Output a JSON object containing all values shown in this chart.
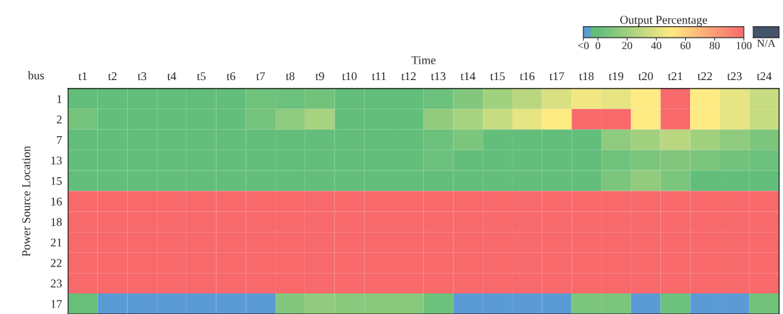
{
  "chart_data": {
    "type": "heatmap",
    "xlabel": "Time",
    "ylabel": "Power Source Location",
    "clabel": "Output Percentage",
    "categories": [
      "t1",
      "t2",
      "t3",
      "t4",
      "t5",
      "t6",
      "t7",
      "t8",
      "t9",
      "t10",
      "t11",
      "t12",
      "t13",
      "t14",
      "t15",
      "t16",
      "t17",
      "t18",
      "t19",
      "t20",
      "t21",
      "t22",
      "t23",
      "t24"
    ],
    "y_categories": [
      "1",
      "2",
      "7",
      "13",
      "15",
      "16",
      "18",
      "21",
      "22",
      "23",
      "17"
    ],
    "cells": [
      [
        0,
        0,
        0,
        0,
        0,
        0,
        4,
        3,
        5,
        0,
        0,
        0,
        3,
        10,
        20,
        28,
        38,
        45,
        42,
        50,
        100,
        50,
        42,
        32
      ],
      [
        6,
        0,
        0,
        0,
        0,
        0,
        6,
        14,
        22,
        0,
        0,
        0,
        15,
        22,
        32,
        42,
        50,
        100,
        100,
        50,
        100,
        50,
        42,
        32
      ],
      [
        0,
        0,
        0,
        0,
        0,
        0,
        0,
        0,
        0,
        0,
        0,
        0,
        3,
        8,
        0,
        0,
        0,
        0,
        14,
        20,
        28,
        20,
        14,
        8
      ],
      [
        0,
        0,
        0,
        0,
        0,
        0,
        0,
        0,
        0,
        0,
        0,
        0,
        3,
        0,
        0,
        0,
        0,
        0,
        4,
        8,
        10,
        8,
        5,
        3
      ],
      [
        0,
        0,
        0,
        0,
        0,
        0,
        0,
        0,
        0,
        0,
        0,
        0,
        0,
        0,
        0,
        0,
        0,
        0,
        8,
        15,
        8,
        0,
        0,
        0
      ],
      [
        100,
        100,
        100,
        100,
        100,
        100,
        100,
        100,
        100,
        100,
        100,
        100,
        100,
        100,
        100,
        100,
        100,
        100,
        100,
        100,
        100,
        100,
        100,
        100
      ],
      [
        100,
        100,
        100,
        100,
        100,
        100,
        100,
        100,
        100,
        100,
        100,
        100,
        100,
        100,
        100,
        100,
        100,
        100,
        100,
        100,
        100,
        100,
        100,
        100
      ],
      [
        100,
        100,
        100,
        100,
        100,
        100,
        100,
        100,
        100,
        100,
        100,
        100,
        100,
        100,
        100,
        100,
        100,
        100,
        100,
        100,
        100,
        100,
        100,
        100
      ],
      [
        100,
        100,
        100,
        100,
        100,
        100,
        100,
        100,
        100,
        100,
        100,
        100,
        100,
        100,
        100,
        100,
        100,
        100,
        100,
        100,
        100,
        100,
        100,
        100
      ],
      [
        100,
        100,
        100,
        100,
        100,
        100,
        100,
        100,
        100,
        100,
        100,
        100,
        100,
        100,
        100,
        100,
        100,
        100,
        100,
        100,
        100,
        100,
        100,
        100
      ],
      [
        2,
        -10,
        -10,
        -10,
        -10,
        -10,
        -10,
        10,
        15,
        12,
        12,
        12,
        3,
        -10,
        -10,
        -10,
        -10,
        8,
        8,
        -10,
        3,
        -10,
        -10,
        5
      ]
    ],
    "clim": [
      -10,
      100
    ],
    "cticks": [
      {
        "value": -10,
        "label": "<0"
      },
      0,
      20,
      40,
      60,
      80,
      100
    ],
    "annotations": [
      "bus",
      "N/A"
    ]
  }
}
